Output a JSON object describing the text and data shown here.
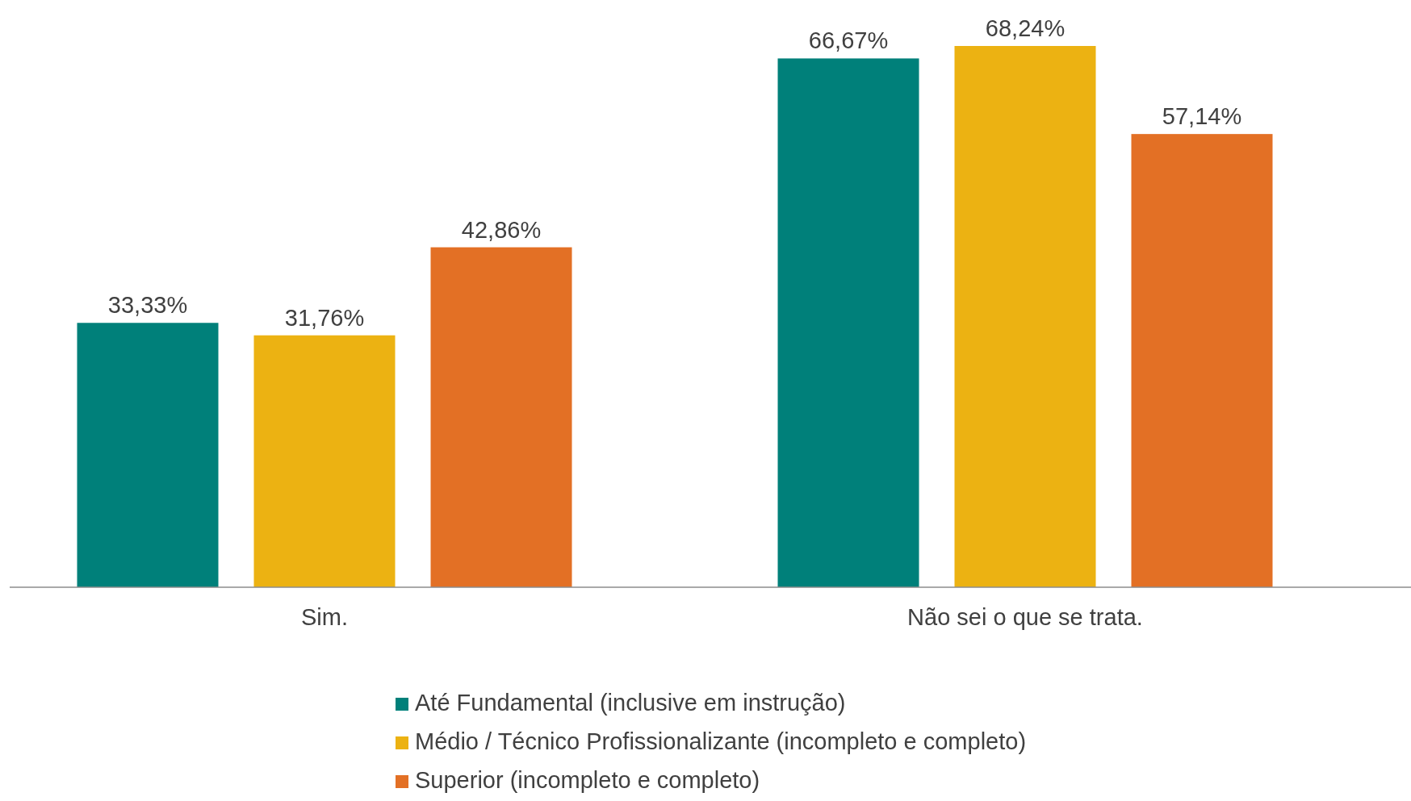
{
  "chart_data": {
    "type": "bar",
    "categories": [
      "Sim.",
      "Não sei o que se trata."
    ],
    "series": [
      {
        "name": "Até Fundamental (inclusive em instrução)",
        "color": "#00807a",
        "values": [
          33.33,
          66.67
        ],
        "value_labels": [
          "33,33%",
          "66,67%"
        ]
      },
      {
        "name": "Médio / Técnico Profissionalizante (incompleto e completo)",
        "color": "#ecb212",
        "values": [
          31.76,
          68.24
        ],
        "value_labels": [
          "31,76%",
          "68,24%"
        ]
      },
      {
        "name": "Superior (incompleto e completo)",
        "color": "#e37025",
        "values": [
          42.86,
          57.14
        ],
        "value_labels": [
          "42,86%",
          "57,14%"
        ]
      }
    ],
    "legend": "bottom",
    "grid": false
  }
}
